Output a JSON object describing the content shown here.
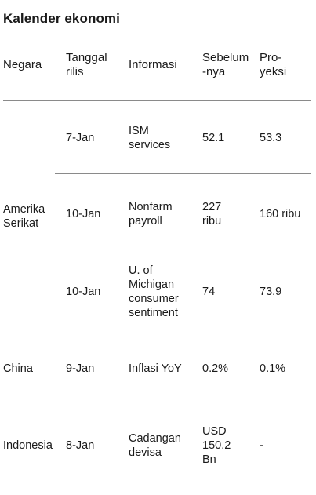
{
  "title": "Kalender ekonomi",
  "columns": {
    "negara": "Negara",
    "tanggal": "Tanggal\nrilis",
    "informasi": "Informasi",
    "sebelumnya": "Sebelum\n-nya",
    "proyeksi": "Pro-\nyeksi"
  },
  "groups": [
    {
      "negara": "Amerika\nSerikat",
      "rows": [
        {
          "tanggal": "7-Jan",
          "informasi": "ISM\nservices",
          "sebelumnya": "52.1",
          "proyeksi": "53.3"
        },
        {
          "tanggal": "10-Jan",
          "informasi": "Nonfarm\npayroll",
          "sebelumnya": "227\nribu",
          "proyeksi": "160 ribu"
        },
        {
          "tanggal": "10-Jan",
          "informasi": "U. of\nMichigan\nconsumer\nsentiment",
          "sebelumnya": "74",
          "proyeksi": "73.9"
        }
      ]
    },
    {
      "negara": "China",
      "rows": [
        {
          "tanggal": "9-Jan",
          "informasi": "Inflasi YoY",
          "sebelumnya": "0.2%",
          "proyeksi": "0.1%"
        }
      ]
    },
    {
      "negara": "Indonesia",
      "rows": [
        {
          "tanggal": "8-Jan",
          "informasi": "Cadangan\ndevisa",
          "sebelumnya": "USD\n150.2\nBn",
          "proyeksi": "-"
        }
      ]
    }
  ]
}
